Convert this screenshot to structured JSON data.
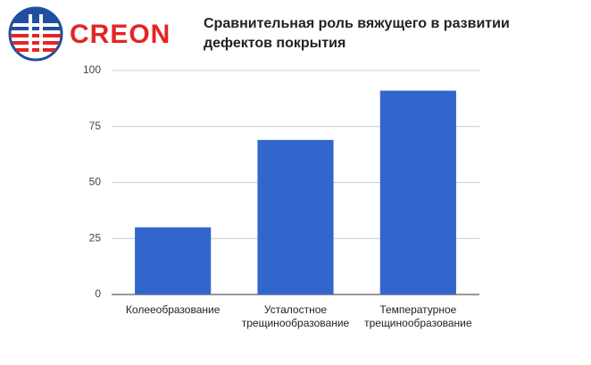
{
  "logo": "CREON",
  "chart_data": {
    "type": "bar",
    "title": "Сравнительная роль вяжущего в развитии дефектов покрытия",
    "categories": [
      "Колееобразование",
      "Усталостное трещинообразование",
      "Температурное трещинообразование"
    ],
    "values": [
      30,
      69,
      91
    ],
    "color": "#3366cc",
    "ylim": [
      0,
      100
    ],
    "yticks": [
      0,
      25,
      50,
      75,
      100
    ],
    "grid": true
  }
}
